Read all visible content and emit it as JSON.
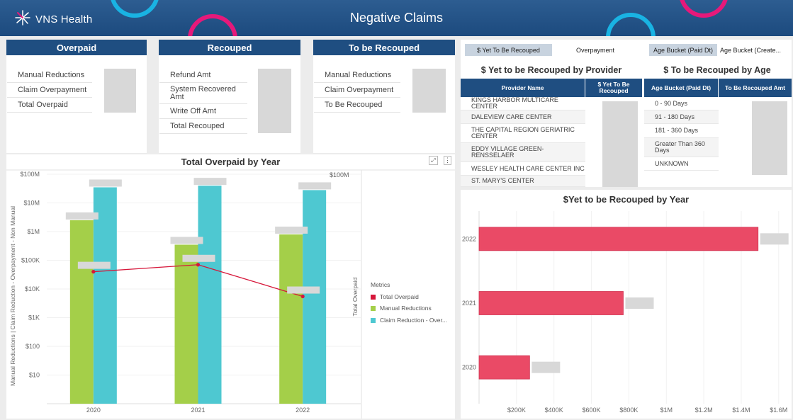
{
  "header": {
    "brand": "VNS Health",
    "title": "Negative Claims"
  },
  "kpis": [
    {
      "title": "Overpaid",
      "rows": [
        "Manual Reductions",
        "Claim Overpayment",
        "Total Overpaid"
      ]
    },
    {
      "title": "Recouped",
      "rows": [
        "Refund Amt",
        "System Recovered Amt",
        "Write Off Amt",
        "Total Recouped"
      ]
    },
    {
      "title": "To be Recouped",
      "rows": [
        "Manual Reductions",
        "Claim Overpayment",
        "To Be Recouped"
      ]
    }
  ],
  "tabs": [
    "$ Yet To Be Recouped",
    "Overpayment",
    "Age Bucket (Paid Dt)",
    "Age Bucket (Create..."
  ],
  "provider_table": {
    "title": "$ Yet to be Recouped by Provider",
    "headers": [
      "Provider Name",
      "$ Yet To Be Recouped"
    ],
    "rows": [
      "KINGS HARBOR MULTICARE CENTER",
      "DALEVIEW CARE CENTER",
      "THE CAPITAL REGION GERIATRIC CENTER",
      "EDDY VILLAGE GREEN-RENSSELAER",
      "WESLEY HEALTH CARE CENTER INC",
      "ST. MARY'S CENTER"
    ]
  },
  "age_table": {
    "title": "$ To be Recouped by Age",
    "headers": [
      "Age Bucket (Paid Dt)",
      "To Be Recouped Amt"
    ],
    "rows": [
      "0 - 90 Days",
      "91 - 180 Days",
      "181 - 360 Days",
      "Greater Than 360 Days",
      "UNKNOWN"
    ]
  },
  "icons": {
    "expand": "expand-icon",
    "more": "more-options-icon",
    "logo": "vns-logo-icon"
  },
  "colors": {
    "header": "#1f4e81",
    "total_overpaid": "#d6173a",
    "manual_reductions": "#a4cf49",
    "claim_reduction": "#4ec8d1",
    "bar_pink": "#ea4a66"
  },
  "chart_data": [
    {
      "type": "bar",
      "title": "Total Overpaid by Year",
      "categories": [
        "2020",
        "2021",
        "2022"
      ],
      "ylabel": "Manual Reductions  |  Claim Reduction - Overpayment - Non Manual",
      "y2label": "Total Overpaid",
      "yscale": "log",
      "yticks": [
        "$10",
        "$100",
        "$1K",
        "$10K",
        "$100K",
        "$1M",
        "$10M",
        "$100M"
      ],
      "y2ticks": [
        "$100M"
      ],
      "series": [
        {
          "name": "Manual Reductions",
          "values": [
            2500000,
            350000,
            800000
          ]
        },
        {
          "name": "Claim Reduction - Over...",
          "values": [
            35000000,
            40000000,
            28000000
          ]
        },
        {
          "name": "Total Overpaid",
          "values": [
            40000,
            70000,
            5500
          ]
        }
      ],
      "legend": {
        "title": "Metrics",
        "items": [
          "Total Overpaid",
          "Manual Reductions",
          "Claim Reduction - Over..."
        ],
        "position": "right"
      }
    },
    {
      "type": "bar",
      "orientation": "horizontal",
      "title": "$Yet to be Recouped by Year",
      "categories": [
        "2022",
        "2021",
        "2020"
      ],
      "values": [
        1490000,
        770000,
        270000
      ],
      "xticks": [
        "$200K",
        "$400K",
        "$600K",
        "$800K",
        "$1M",
        "$1.2M",
        "$1.4M",
        "$1.6M"
      ],
      "xlim": [
        0,
        1650000
      ]
    }
  ]
}
